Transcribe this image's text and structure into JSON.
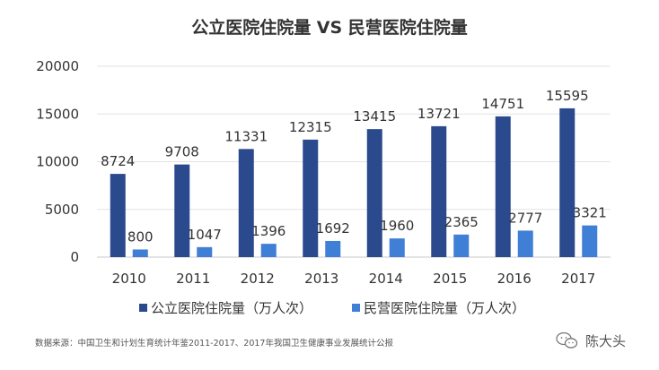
{
  "chart_data": {
    "type": "bar",
    "title": "公立医院住院量 VS 民营医院住院量",
    "categories": [
      "2010",
      "2011",
      "2012",
      "2013",
      "2014",
      "2015",
      "2016",
      "2017"
    ],
    "series": [
      {
        "name": "公立医院住院量（万人次）",
        "color": "#2b4a8e",
        "values": [
          8724,
          9708,
          11331,
          12315,
          13415,
          13721,
          14751,
          15595
        ]
      },
      {
        "name": "民营医院住院量（万人次）",
        "color": "#3f7fd6",
        "values": [
          800,
          1047,
          1396,
          1692,
          1960,
          2365,
          2777,
          3321
        ]
      }
    ],
    "yticks": [
      "0",
      "5000",
      "10000",
      "15000",
      "20000"
    ],
    "ylim": [
      0,
      20000
    ],
    "grid": true,
    "legend_position": "bottom-center",
    "xlabel": "",
    "ylabel": ""
  },
  "source_note": "数据来源：中国卫生和计划生育统计年鉴2011-2017、2017年我国卫生健康事业发展统计公报",
  "watermark": {
    "text": "陈大头",
    "icon": "wechat-icon"
  }
}
